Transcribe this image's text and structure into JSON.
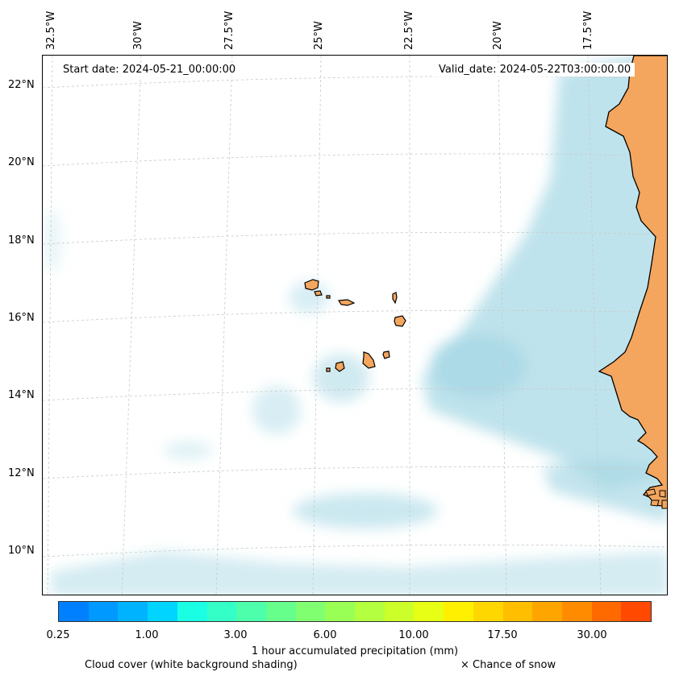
{
  "map": {
    "lon_labels": [
      "32.5°W",
      "30°W",
      "27.5°W",
      "25°W",
      "22.5°W",
      "20°W",
      "17.5°W"
    ],
    "lat_labels": [
      "22°N",
      "20°N",
      "18°N",
      "16°N",
      "14°N",
      "12°N",
      "10°N"
    ],
    "start_date": "Start date: 2024-05-21_00:00:00",
    "valid_date": "Valid_date: 2024-05-22T03:00:00.00",
    "colors": {
      "land": "#f4a65e",
      "cloud": "#a9d9e6",
      "coast": "#000000",
      "grid": "#c8c8c8"
    }
  },
  "colorbar": {
    "ticks": [
      "0.25",
      "1.00",
      "3.00",
      "6.00",
      "10.00",
      "17.50",
      "30.00"
    ],
    "title": "1 hour accumulated precipitation (mm)",
    "colors": [
      "#0080ff",
      "#0099ff",
      "#00b3ff",
      "#00d4ff",
      "#1affe4",
      "#33ffc6",
      "#4dffaa",
      "#66ff8c",
      "#80ff70",
      "#99ff55",
      "#b3ff40",
      "#ccff2a",
      "#e6ff15",
      "#fff000",
      "#ffd700",
      "#ffbe00",
      "#ffa500",
      "#ff8c00",
      "#ff6a00",
      "#ff4800"
    ]
  },
  "legend": {
    "cloud_cover": "Cloud cover (white background shading)",
    "snow": "× Chance of snow"
  }
}
